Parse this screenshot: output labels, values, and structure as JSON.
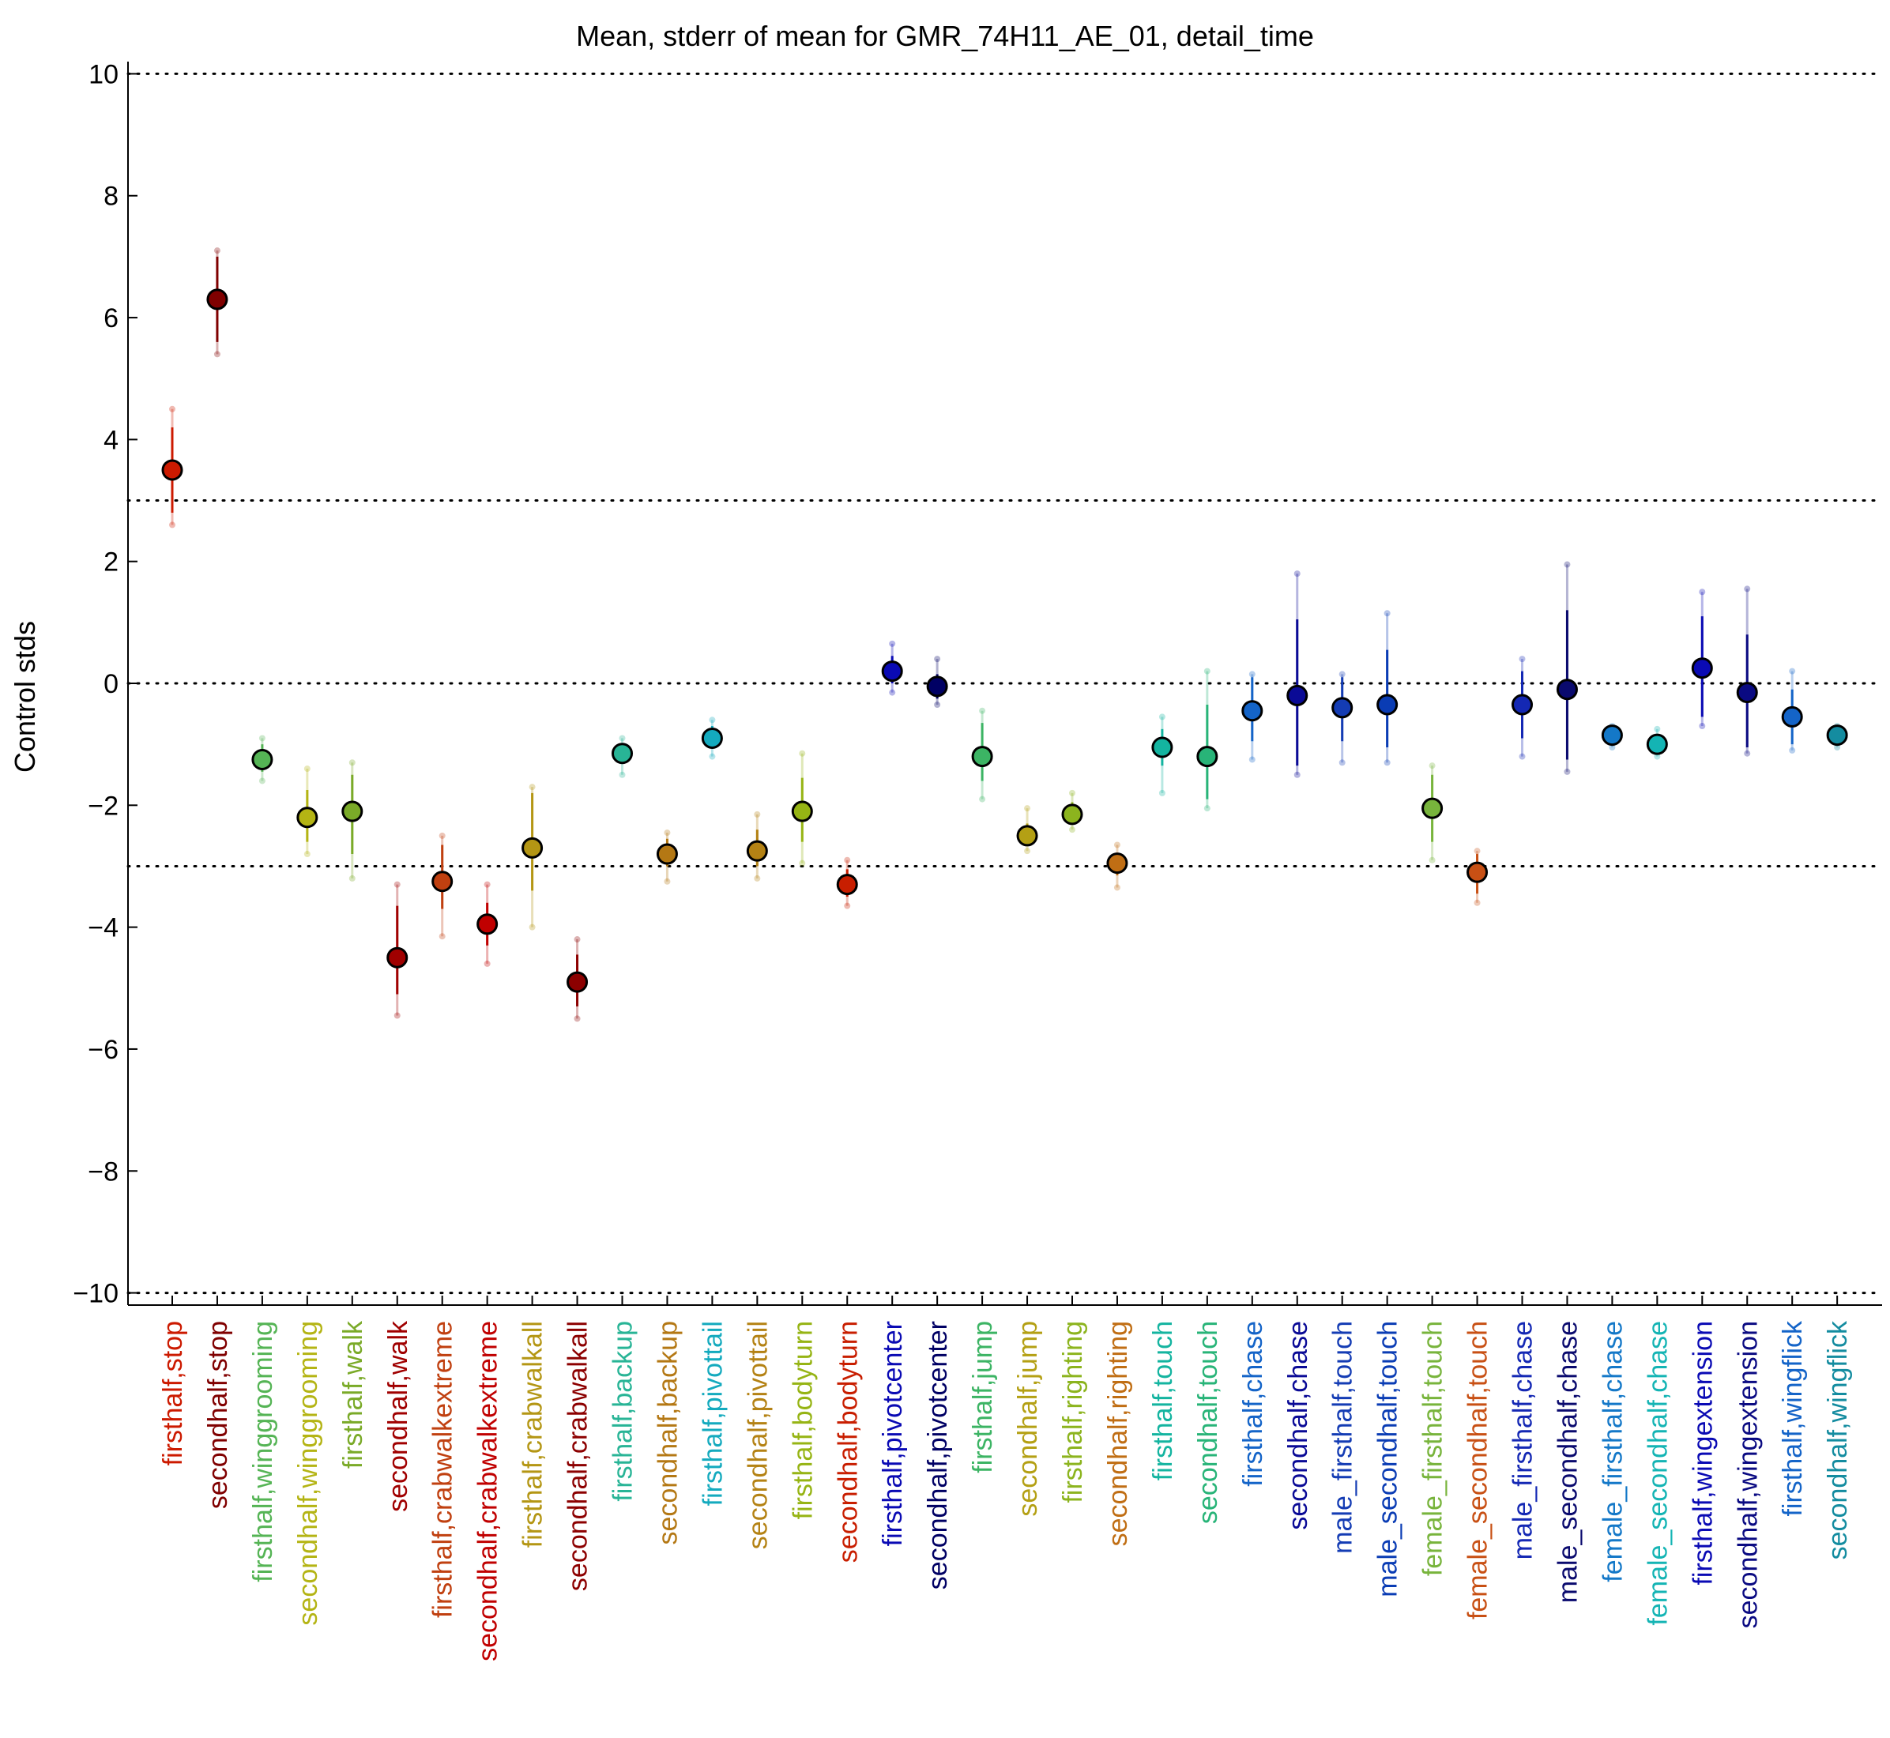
{
  "chart_data": {
    "type": "scatter",
    "title": "Mean, stderr of mean for GMR_74H11_AE_01, detail_time",
    "ylabel": "Control stds",
    "xlabel": "",
    "ylim": [
      -10.2,
      10.2
    ],
    "yticks": [
      -10,
      -8,
      -6,
      -4,
      -2,
      0,
      2,
      4,
      6,
      8,
      10
    ],
    "ytick_labels": [
      "−10",
      "−8",
      "−6",
      "−4",
      "−2",
      "0",
      "2",
      "4",
      "6",
      "8",
      "10"
    ],
    "reference_lines": [
      10,
      3,
      0,
      -3,
      -10
    ],
    "reference_line_style": "dotted",
    "categories": [
      "firsthalf,stop",
      "secondhalf,stop",
      "firsthalf,winggrooming",
      "secondhalf,winggrooming",
      "firsthalf,walk",
      "secondhalf,walk",
      "firsthalf,crabwalkextreme",
      "secondhalf,crabwalkextreme",
      "firsthalf,crabwalkall",
      "secondhalf,crabwalkall",
      "firsthalf,backup",
      "secondhalf,backup",
      "firsthalf,pivottail",
      "secondhalf,pivottail",
      "firsthalf,bodyturn",
      "secondhalf,bodyturn",
      "firsthalf,pivotcenter",
      "secondhalf,pivotcenter",
      "firsthalf,jump",
      "secondhalf,jump",
      "firsthalf,righting",
      "secondhalf,righting",
      "firsthalf,touch",
      "secondhalf,touch",
      "firsthalf,chase",
      "secondhalf,chase",
      "male_firsthalf,touch",
      "male_secondhalf,touch",
      "female_firsthalf,touch",
      "female_secondhalf,touch",
      "male_firsthalf,chase",
      "male_secondhalf,chase",
      "female_firsthalf,chase",
      "female_secondhalf,chase",
      "firsthalf,wingextension",
      "secondhalf,wingextension",
      "firsthalf,wingflick",
      "secondhalf,wingflick"
    ],
    "means": [
      3.5,
      6.3,
      -1.25,
      -2.2,
      -2.1,
      -4.5,
      -3.25,
      -3.95,
      -2.7,
      -4.9,
      -1.15,
      -2.8,
      -0.9,
      -2.75,
      -2.1,
      -3.3,
      0.2,
      -0.05,
      -1.2,
      -2.5,
      -2.15,
      -2.95,
      -1.05,
      -1.2,
      -0.45,
      -0.2,
      -0.4,
      -0.35,
      -2.05,
      -3.1,
      -0.35,
      -0.1,
      -0.85,
      -1.0,
      0.25,
      -0.15,
      -0.55,
      -0.85
    ],
    "stderr_low": [
      2.8,
      5.6,
      -1.45,
      -2.6,
      -2.8,
      -5.1,
      -3.7,
      -4.3,
      -3.4,
      -5.3,
      -1.3,
      -3.0,
      -1.05,
      -3.0,
      -2.6,
      -3.5,
      0.0,
      -0.25,
      -1.6,
      -2.65,
      -2.3,
      -3.15,
      -1.35,
      -1.9,
      -0.95,
      -1.35,
      -0.95,
      -1.05,
      -2.6,
      -3.45,
      -0.9,
      -1.25,
      -0.95,
      -1.1,
      -0.55,
      -1.05,
      -1.0,
      -0.95
    ],
    "stderr_high": [
      4.2,
      7.0,
      -1.0,
      -1.75,
      -1.5,
      -3.65,
      -2.65,
      -3.6,
      -1.8,
      -4.45,
      -1.0,
      -2.55,
      -0.7,
      -2.4,
      -1.55,
      -3.05,
      0.45,
      0.15,
      -0.65,
      -2.3,
      -1.95,
      -2.8,
      -0.75,
      -0.35,
      0.1,
      1.05,
      0.1,
      0.55,
      -1.5,
      -2.8,
      0.2,
      1.2,
      -0.75,
      -0.85,
      1.1,
      0.8,
      -0.1,
      -0.75
    ],
    "point_extremes": [
      [
        2.6,
        4.5
      ],
      [
        5.4,
        7.1
      ],
      [
        -1.6,
        -0.9
      ],
      [
        -2.8,
        -1.4
      ],
      [
        -3.2,
        -1.3
      ],
      [
        -5.45,
        -3.3
      ],
      [
        -4.15,
        -2.5
      ],
      [
        -4.6,
        -3.3
      ],
      [
        -4.0,
        -1.7
      ],
      [
        -5.5,
        -4.2
      ],
      [
        -1.5,
        -0.9
      ],
      [
        -3.25,
        -2.45
      ],
      [
        -1.2,
        -0.6
      ],
      [
        -3.2,
        -2.15
      ],
      [
        -2.95,
        -1.15
      ],
      [
        -3.65,
        -2.9
      ],
      [
        -0.15,
        0.65
      ],
      [
        -0.35,
        0.4
      ],
      [
        -1.9,
        -0.45
      ],
      [
        -2.75,
        -2.05
      ],
      [
        -2.4,
        -1.8
      ],
      [
        -3.35,
        -2.65
      ],
      [
        -1.8,
        -0.55
      ],
      [
        -2.05,
        0.2
      ],
      [
        -1.25,
        0.15
      ],
      [
        -1.5,
        1.8
      ],
      [
        -1.3,
        0.15
      ],
      [
        -1.3,
        1.15
      ],
      [
        -2.9,
        -1.35
      ],
      [
        -3.6,
        -2.75
      ],
      [
        -1.2,
        0.4
      ],
      [
        -1.45,
        1.95
      ],
      [
        -1.05,
        -0.7
      ],
      [
        -1.2,
        -0.75
      ],
      [
        -0.7,
        1.5
      ],
      [
        -1.15,
        1.55
      ],
      [
        -1.1,
        0.2
      ],
      [
        -1.05,
        -0.7
      ]
    ],
    "colors": [
      "#cc1a00",
      "#800000",
      "#55b455",
      "#b4b414",
      "#7aaa28",
      "#a00000",
      "#c04010",
      "#c00000",
      "#b49614",
      "#8c0000",
      "#28b496",
      "#b47814",
      "#14aabe",
      "#b48214",
      "#96b414",
      "#c81e00",
      "#0a0ab4",
      "#000064",
      "#3cb464",
      "#b4a014",
      "#8cb41e",
      "#c06e14",
      "#14b4a0",
      "#28b478",
      "#1464c8",
      "#0a0a96",
      "#143cb4",
      "#0a3cb4",
      "#78b43c",
      "#c85014",
      "#1428b4",
      "#0a0a6e",
      "#1478c8",
      "#14b4b4",
      "#0a0ab4",
      "#0a0a82",
      "#1464c8",
      "#148ca0"
    ]
  }
}
